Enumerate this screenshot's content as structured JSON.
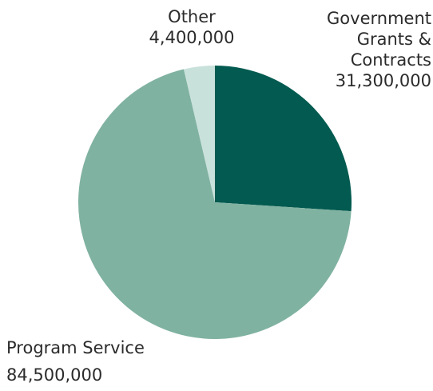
{
  "chart_data": {
    "type": "pie",
    "title": "",
    "colors": [
      "#025a50",
      "#80b2a1",
      "#c9e1db"
    ],
    "slices": [
      {
        "label_lines": [
          "Government",
          "Grants &",
          "Contracts"
        ],
        "value": 31300000,
        "value_text": "31,300,000"
      },
      {
        "label_lines": [
          "Program Service"
        ],
        "value": 84500000,
        "value_text": "84,500,000"
      },
      {
        "label_lines": [
          "Other"
        ],
        "value": 4400000,
        "value_text": "4,400,000"
      }
    ]
  }
}
